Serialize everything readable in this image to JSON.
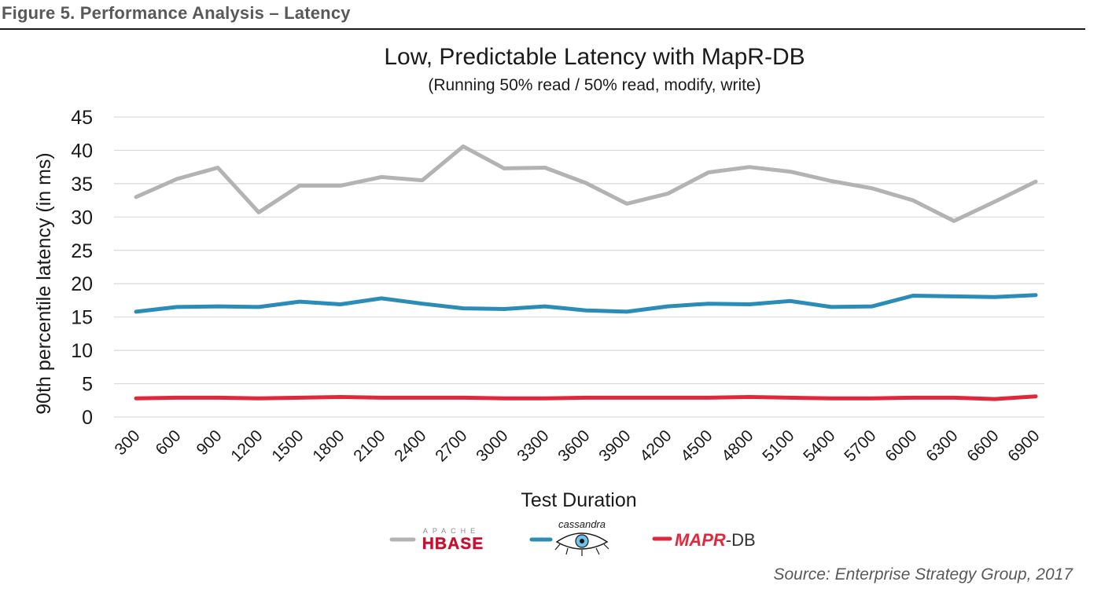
{
  "figure": {
    "caption": "Figure 5. Performance Analysis – Latency",
    "source": "Source: Enterprise Strategy Group, 2017"
  },
  "chart_data": {
    "type": "line",
    "title": "Low, Predictable Latency with MapR-DB",
    "subtitle": "(Running 50% read / 50% read, modify, write)",
    "xlabel": "Test Duration",
    "ylabel": "90th percentile latency (in ms)",
    "ylim": [
      0,
      45
    ],
    "yticks": [
      0,
      5,
      10,
      15,
      20,
      25,
      30,
      35,
      40,
      45
    ],
    "grid": true,
    "legend_position": "bottom",
    "categories": [
      "300",
      "600",
      "900",
      "1200",
      "1500",
      "1800",
      "2100",
      "2400",
      "2700",
      "3000",
      "3300",
      "3600",
      "3900",
      "4200",
      "4500",
      "4800",
      "5100",
      "5400",
      "5700",
      "6000",
      "6300",
      "6600",
      "6900"
    ],
    "series": [
      {
        "name": "HBASE",
        "legend_small_text": "APACHE",
        "color": "#b3b3b3",
        "values": [
          33,
          35.7,
          37.4,
          30.7,
          34.7,
          34.7,
          36,
          35.5,
          40.6,
          37.3,
          37.4,
          35.1,
          32,
          33.5,
          36.7,
          37.5,
          36.8,
          35.4,
          34.3,
          32.5,
          29.4,
          32.3,
          35.3
        ]
      },
      {
        "name": "cassandra",
        "color": "#2b8cb8",
        "values": [
          15.8,
          16.5,
          16.6,
          16.5,
          17.3,
          16.9,
          17.8,
          17,
          16.3,
          16.2,
          16.6,
          16,
          15.8,
          16.6,
          17,
          16.9,
          17.4,
          16.5,
          16.6,
          18.2,
          18.1,
          18,
          18.3
        ]
      },
      {
        "name": "MAPR-DB",
        "legend_text_accent": "MAPR",
        "legend_text_rest": "-DB",
        "color": "#e0283c",
        "values": [
          2.8,
          2.9,
          2.9,
          2.8,
          2.9,
          3,
          2.9,
          2.9,
          2.9,
          2.8,
          2.8,
          2.9,
          2.9,
          2.9,
          2.9,
          3,
          2.9,
          2.8,
          2.8,
          2.9,
          2.9,
          2.7,
          3.1
        ]
      }
    ]
  }
}
